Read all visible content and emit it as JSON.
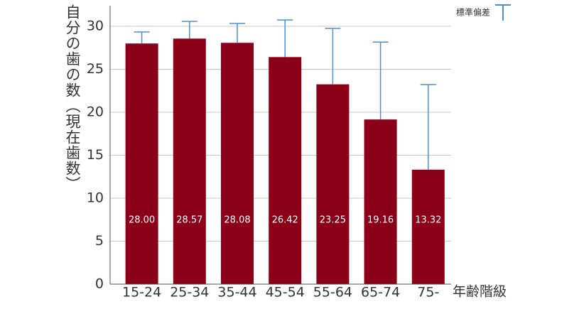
{
  "chart_data": {
    "type": "bar",
    "y_label": "自分の歯の数（現在歯数）",
    "x_label": "年齢階級",
    "categories": [
      "15-24",
      "25-34",
      "35-44",
      "45-54",
      "55-64",
      "65-74",
      "75-"
    ],
    "values": [
      28.0,
      28.57,
      28.08,
      26.42,
      23.25,
      19.16,
      13.32
    ],
    "value_labels": [
      "28.00",
      "28.57",
      "28.08",
      "26.42",
      "23.25",
      "19.16",
      "13.32"
    ],
    "color": "#8b0018",
    "error_bars": {
      "name": "標準偏差",
      "color": "#4a8fd8",
      "values": [
        1.34,
        2.0,
        2.25,
        4.32,
        6.5,
        9.0,
        9.9
      ]
    },
    "ylim": [
      0,
      32.4
    ],
    "yticks": [
      0,
      5,
      10,
      15,
      20,
      25,
      30
    ],
    "grid": true
  }
}
